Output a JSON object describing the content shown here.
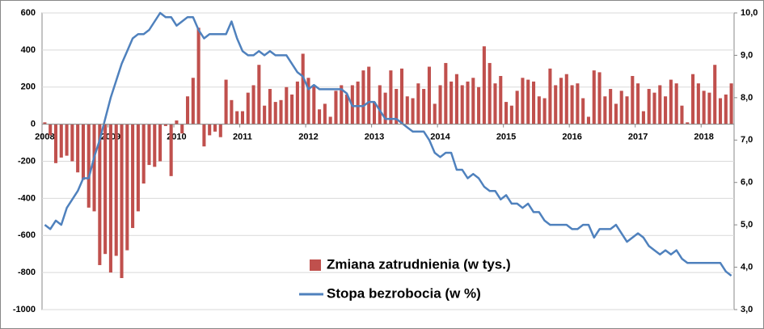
{
  "chart_data": {
    "type": "bar-line",
    "categories": [
      "2008",
      null,
      null,
      null,
      null,
      null,
      null,
      null,
      null,
      null,
      null,
      null,
      "2009",
      null,
      null,
      null,
      null,
      null,
      null,
      null,
      null,
      null,
      null,
      null,
      "2010",
      null,
      null,
      null,
      null,
      null,
      null,
      null,
      null,
      null,
      null,
      null,
      "2011",
      null,
      null,
      null,
      null,
      null,
      null,
      null,
      null,
      null,
      null,
      null,
      "2012",
      null,
      null,
      null,
      null,
      null,
      null,
      null,
      null,
      null,
      null,
      null,
      "2013",
      null,
      null,
      null,
      null,
      null,
      null,
      null,
      null,
      null,
      null,
      null,
      "2014",
      null,
      null,
      null,
      null,
      null,
      null,
      null,
      null,
      null,
      null,
      null,
      "2015",
      null,
      null,
      null,
      null,
      null,
      null,
      null,
      null,
      null,
      null,
      null,
      "2016",
      null,
      null,
      null,
      null,
      null,
      null,
      null,
      null,
      null,
      null,
      null,
      "2017",
      null,
      null,
      null,
      null,
      null,
      null,
      null,
      null,
      null,
      null,
      null,
      "2018",
      null,
      null,
      null,
      null,
      null
    ],
    "series": [
      {
        "name": "Zmiana zatrudnienia (w tys.)",
        "color": "#c0504d",
        "kind": "bar",
        "values": [
          10,
          -60,
          -210,
          -180,
          -170,
          -200,
          -260,
          -300,
          -450,
          -470,
          -760,
          -700,
          -800,
          -710,
          -830,
          -680,
          -560,
          -470,
          -320,
          -220,
          -230,
          -200,
          -10,
          -280,
          20,
          -50,
          150,
          250,
          520,
          -120,
          -60,
          -40,
          -70,
          240,
          130,
          70,
          70,
          170,
          210,
          320,
          100,
          190,
          120,
          130,
          200,
          160,
          230,
          380,
          250,
          210,
          80,
          110,
          40,
          180,
          210,
          160,
          210,
          230,
          290,
          310,
          120,
          210,
          170,
          290,
          190,
          300,
          150,
          140,
          220,
          190,
          310,
          110,
          210,
          330,
          230,
          270,
          210,
          230,
          250,
          200,
          420,
          330,
          220,
          260,
          120,
          100,
          180,
          250,
          240,
          230,
          150,
          140,
          300,
          210,
          250,
          270,
          210,
          220,
          140,
          40,
          290,
          280,
          150,
          190,
          110,
          180,
          150,
          260,
          220,
          70,
          190,
          170,
          210,
          150,
          240,
          220,
          100,
          10,
          270,
          220,
          180,
          170,
          320,
          140,
          160,
          220
        ]
      },
      {
        "name": "Stopa bezrobocia (w %)",
        "color": "#4f81bd",
        "kind": "line",
        "axis": "y2",
        "values": [
          5.0,
          4.9,
          5.1,
          5.0,
          5.4,
          5.6,
          5.8,
          6.1,
          6.1,
          6.6,
          7.0,
          7.5,
          8.0,
          8.4,
          8.8,
          9.1,
          9.4,
          9.5,
          9.5,
          9.6,
          9.8,
          10.0,
          9.9,
          9.9,
          9.7,
          9.8,
          9.9,
          9.9,
          9.6,
          9.4,
          9.5,
          9.5,
          9.5,
          9.5,
          9.8,
          9.4,
          9.1,
          9.0,
          9.0,
          9.1,
          9.0,
          9.1,
          9.0,
          9.0,
          9.0,
          8.8,
          8.6,
          8.5,
          8.2,
          8.3,
          8.2,
          8.2,
          8.2,
          8.2,
          8.2,
          8.1,
          7.8,
          7.8,
          7.8,
          7.9,
          7.9,
          7.7,
          7.5,
          7.5,
          7.5,
          7.4,
          7.3,
          7.2,
          7.2,
          7.2,
          7.0,
          6.7,
          6.6,
          6.7,
          6.7,
          6.3,
          6.3,
          6.1,
          6.2,
          6.1,
          5.9,
          5.8,
          5.8,
          5.6,
          5.7,
          5.5,
          5.5,
          5.4,
          5.5,
          5.3,
          5.3,
          5.1,
          5.0,
          5.0,
          5.0,
          5.0,
          4.9,
          4.9,
          5.0,
          5.0,
          4.7,
          4.9,
          4.9,
          4.9,
          5.0,
          4.8,
          4.6,
          4.7,
          4.8,
          4.7,
          4.5,
          4.4,
          4.3,
          4.4,
          4.3,
          4.4,
          4.2,
          4.1,
          4.1,
          4.1,
          4.1,
          4.1,
          4.1,
          4.1,
          3.9,
          3.8
        ]
      }
    ],
    "ylim": [
      -1000,
      600
    ],
    "yticks": [
      -1000,
      -800,
      -600,
      -400,
      -200,
      0,
      200,
      400,
      600
    ],
    "y2lim": [
      3,
      10
    ],
    "y2ticks": [
      {
        "value": 3,
        "label": "3,0"
      },
      {
        "value": 4,
        "label": "4,0"
      },
      {
        "value": 5,
        "label": "5,0"
      },
      {
        "value": 6,
        "label": "6,0"
      },
      {
        "value": 7,
        "label": "7,0"
      },
      {
        "value": 8,
        "label": "8,0"
      },
      {
        "value": 9,
        "label": "9,0"
      },
      {
        "value": 10,
        "label": "10,0"
      }
    ],
    "grid": true,
    "legend": "bottom"
  }
}
